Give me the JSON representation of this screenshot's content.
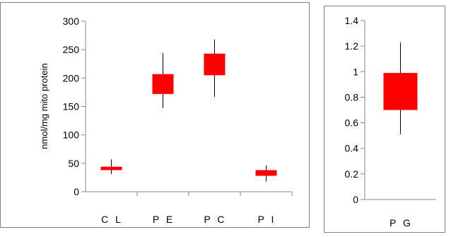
{
  "colors": {
    "box": "#ff0000",
    "whisker": "#000000",
    "frame": "#808080",
    "axis": "#888888"
  },
  "chart_data": [
    {
      "type": "box",
      "ylabel": "nmol/mg mito protein",
      "ylim": [
        0,
        300
      ],
      "yticks": [
        "0",
        "50",
        "100",
        "150",
        "200",
        "250",
        "300"
      ],
      "categories": [
        "C L",
        "P E",
        "P C",
        "P I"
      ],
      "series": [
        {
          "min": 31,
          "q1": 38,
          "q3": 44,
          "max": 57
        },
        {
          "min": 147,
          "q1": 172,
          "q3": 207,
          "max": 244
        },
        {
          "min": 167,
          "q1": 205,
          "q3": 243,
          "max": 268
        },
        {
          "min": 18,
          "q1": 28,
          "q3": 38,
          "max": 46
        }
      ]
    },
    {
      "type": "box",
      "ylim": [
        0,
        1.4
      ],
      "yticks": [
        "0",
        "0.2",
        "0.4",
        "0.6",
        "0.8",
        "1",
        "1.2",
        "1.4"
      ],
      "categories": [
        "P G"
      ],
      "series": [
        {
          "min": 0.51,
          "q1": 0.7,
          "q3": 0.99,
          "max": 1.23
        }
      ]
    }
  ]
}
